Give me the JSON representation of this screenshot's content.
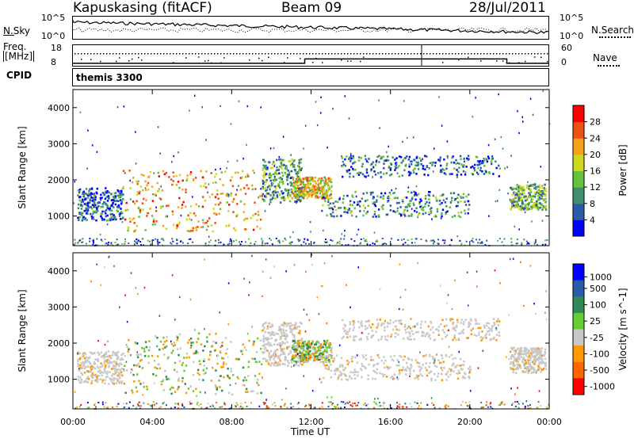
{
  "header": {
    "site": "Kapuskasing (fitACF)",
    "beam": "Beam 09",
    "date": "28/Jul/2011"
  },
  "noise_panel": {
    "left_label": "N.Sky",
    "right_label": "N.Search",
    "left_ticks": [
      "10^5",
      "10^0"
    ],
    "right_ticks": [
      "10^5",
      "10^0"
    ]
  },
  "freq_panel": {
    "left_label_1": "Freq.",
    "left_label_2": "[MHz]",
    "left_ticks": [
      "18",
      "8"
    ],
    "right_label": "Nave",
    "right_ticks": [
      "60",
      "0"
    ]
  },
  "cpid": {
    "label": "CPID",
    "value": "themis 3300"
  },
  "time_axis": {
    "label": "Time UT",
    "ticks": [
      "00:00",
      "04:00",
      "08:00",
      "12:00",
      "16:00",
      "20:00",
      "00:00"
    ]
  },
  "range_axis": {
    "label": "Slant Range [km]",
    "ticks": [
      "1000",
      "2000",
      "3000",
      "4000"
    ]
  },
  "power_colorbar": {
    "label": "Power [dB]",
    "ticks": [
      "4",
      "8",
      "12",
      "16",
      "20",
      "24",
      "28"
    ],
    "colors": [
      "#0000ff",
      "#2a5aa8",
      "#3f8f6f",
      "#66c23a",
      "#cfd81e",
      "#f5a21a",
      "#f05014",
      "#ff0000"
    ]
  },
  "velocity_colorbar": {
    "label": "Velocity [m s^-1]",
    "ticks": [
      "1000",
      "500",
      "100",
      "25",
      "-25",
      "-100",
      "-500",
      "-1000"
    ],
    "colors": [
      "#0000ff",
      "#2a5aa8",
      "#2e8b57",
      "#66cc33",
      "#c8c8c8",
      "#ff9900",
      "#ff6600",
      "#ff0000"
    ]
  },
  "chart_data": {
    "type": "heatmap",
    "x_label": "Time UT",
    "y_label": "Slant Range [km]",
    "xlim_hours": [
      0,
      24
    ],
    "ylim_km": [
      180,
      4500
    ],
    "x_ticks_hours": [
      0,
      4,
      8,
      12,
      16,
      20,
      24
    ],
    "y_ticks_km": [
      1000,
      2000,
      3000,
      4000
    ],
    "power_scale_db": [
      0,
      30
    ],
    "velocity_scale_ms": [
      -1000,
      1000
    ],
    "scatter_regions": [
      {
        "t_start": 0.2,
        "t_end": 2.5,
        "r_low": 900,
        "r_high": 1800,
        "power_db": 6
      },
      {
        "t_start": 2.5,
        "t_end": 9.5,
        "r_low": 600,
        "r_high": 2300,
        "power_db": 20
      },
      {
        "t_start": 9.5,
        "t_end": 11.5,
        "r_low": 1400,
        "r_high": 2600,
        "power_db": 10
      },
      {
        "t_start": 11.0,
        "t_end": 13.0,
        "r_low": 1500,
        "r_high": 2100,
        "power_db": 18
      },
      {
        "t_start": 12.5,
        "t_end": 20.0,
        "r_low": 1000,
        "r_high": 1700,
        "power_db": 9
      },
      {
        "t_start": 13.5,
        "t_end": 21.5,
        "r_low": 2100,
        "r_high": 2700,
        "power_db": 7
      },
      {
        "t_start": 22.0,
        "t_end": 23.8,
        "r_low": 1200,
        "r_high": 1900,
        "power_db": 12
      }
    ],
    "noise_sky_level": "10^5 declining to 10^0",
    "freq_mhz_step": {
      "before": 8.5,
      "after": 11.0,
      "step_time_hours": 11.7,
      "back_time_hours": 21.9
    }
  }
}
